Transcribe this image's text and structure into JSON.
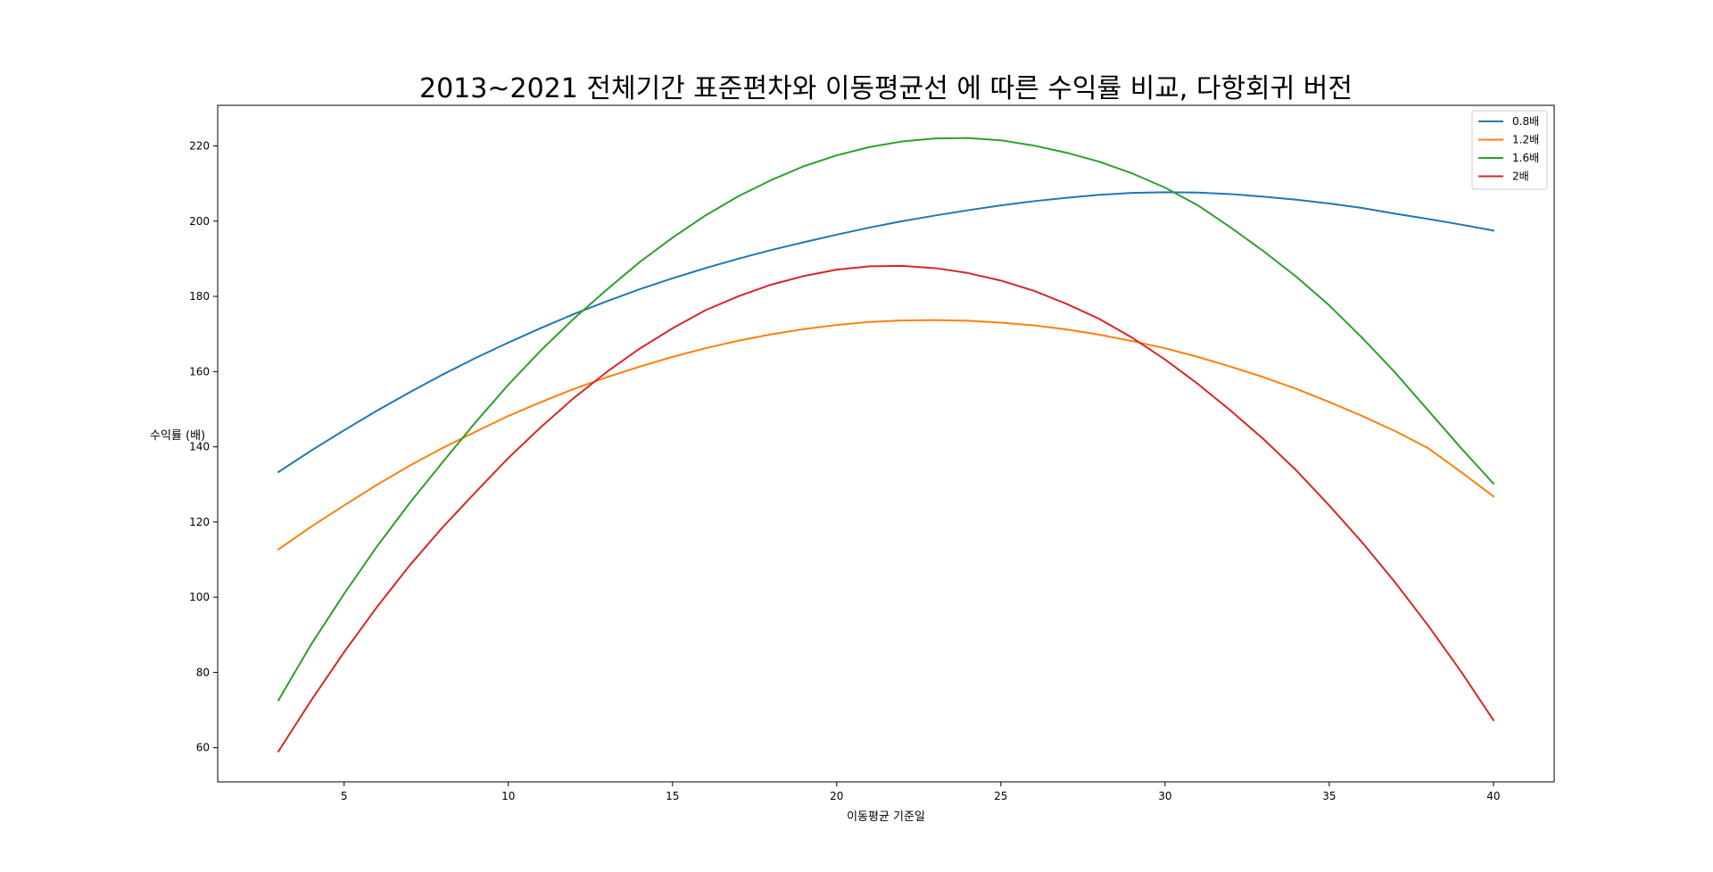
{
  "chart_data": {
    "type": "line",
    "title": "2013~2021 전체기간 표준편차와 이동평균선 에 따른 수익률 비교, 다항회귀 버전",
    "xlabel": "이동평균 기준일",
    "ylabel": "수익률 (배)",
    "xlim": [
      1.15,
      41.85
    ],
    "ylim": [
      50.9,
      230.8
    ],
    "xticks": [
      5,
      10,
      15,
      20,
      25,
      30,
      35,
      40
    ],
    "yticks": [
      60,
      80,
      100,
      120,
      140,
      160,
      180,
      200,
      220
    ],
    "grid": false,
    "legend": {
      "position": "top-right"
    },
    "x": [
      3,
      4,
      5,
      6,
      7,
      8,
      9,
      10,
      11,
      12,
      13,
      14,
      15,
      16,
      17,
      18,
      19,
      20,
      21,
      22,
      23,
      24,
      25,
      26,
      27,
      28,
      29,
      30,
      31,
      32,
      33,
      34,
      35,
      36,
      37,
      38,
      39,
      40
    ],
    "series": [
      {
        "name": "0.8배",
        "color": "#1f77b4",
        "values": [
          133.3,
          139.0,
          144.4,
          149.6,
          154.5,
          159.2,
          163.6,
          167.7,
          171.6,
          175.3,
          178.7,
          181.9,
          184.8,
          187.5,
          190.0,
          192.3,
          194.4,
          196.4,
          198.3,
          200.0,
          201.5,
          202.9,
          204.2,
          205.3,
          206.2,
          207.0,
          207.5,
          207.7,
          207.6,
          207.2,
          206.5,
          205.7,
          204.7,
          203.5,
          202.0,
          200.6,
          199.1,
          197.5
        ]
      },
      {
        "name": "1.2배",
        "color": "#ff7f0e",
        "values": [
          112.7,
          118.8,
          124.4,
          129.9,
          135.0,
          139.7,
          144.0,
          148.2,
          151.9,
          155.4,
          158.5,
          161.3,
          163.9,
          166.2,
          168.2,
          169.9,
          171.3,
          172.4,
          173.2,
          173.6,
          173.7,
          173.5,
          173.0,
          172.3,
          171.2,
          169.8,
          168.1,
          166.2,
          163.9,
          161.3,
          158.5,
          155.4,
          151.9,
          148.2,
          144.2,
          139.7,
          133.4,
          126.8
        ]
      },
      {
        "name": "1.6배",
        "color": "#2ca02c",
        "values": [
          72.6,
          87.5,
          100.9,
          113.5,
          125.1,
          135.9,
          146.5,
          156.5,
          165.7,
          174.1,
          181.8,
          189.1,
          195.6,
          201.5,
          206.6,
          210.9,
          214.6,
          217.5,
          219.7,
          221.2,
          222.0,
          222.1,
          221.5,
          220.1,
          218.2,
          215.8,
          212.7,
          208.9,
          204.2,
          198.3,
          192.0,
          185.2,
          177.6,
          169.0,
          159.8,
          149.8,
          139.8,
          130.2
        ]
      },
      {
        "name": "2배",
        "color": "#d62728",
        "values": [
          59.0,
          72.6,
          85.4,
          97.4,
          108.5,
          118.6,
          127.9,
          137.0,
          145.3,
          153.0,
          159.9,
          166.1,
          171.5,
          176.3,
          180.0,
          183.1,
          185.4,
          187.1,
          188.0,
          188.1,
          187.5,
          186.2,
          184.2,
          181.5,
          178.0,
          174.0,
          169.0,
          163.2,
          156.7,
          149.6,
          142.0,
          133.7,
          124.4,
          114.6,
          104.0,
          92.6,
          80.4,
          67.3
        ]
      }
    ]
  }
}
